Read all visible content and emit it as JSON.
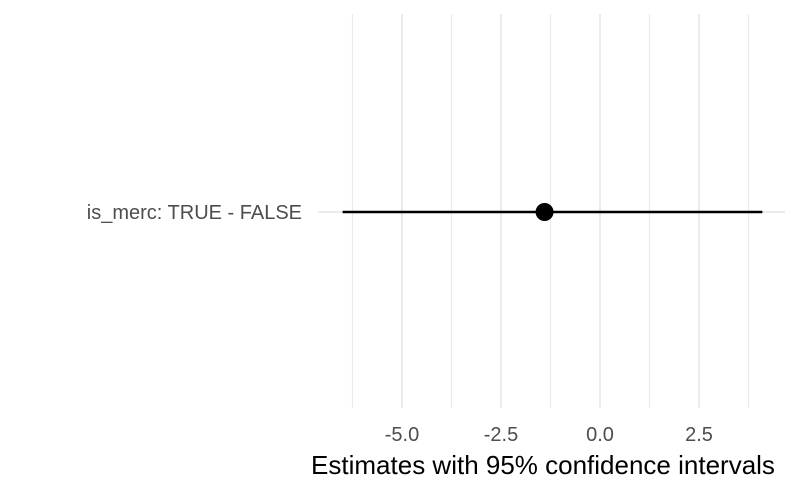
{
  "chart_data": {
    "type": "scatter",
    "title": "",
    "xlabel": "Estimates with 95% confidence intervals",
    "ylabel": "",
    "xlim": [
      -6.0,
      4.1
    ],
    "grid": true,
    "legend": "none",
    "x_ticks": [
      {
        "value": -5.0,
        "label": "-5.0"
      },
      {
        "value": -2.5,
        "label": "-2.5"
      },
      {
        "value": 0.0,
        "label": "0.0"
      },
      {
        "value": 2.5,
        "label": "2.5"
      }
    ],
    "series": [
      {
        "points": [
          {
            "category": "is_merc: TRUE - FALSE",
            "estimate": -1.4,
            "lower": -6.5,
            "upper": 4.1
          }
        ]
      }
    ],
    "colors": {
      "gridline": "#ebebeb",
      "point": "#000000",
      "tick_text": "#4d4d4d",
      "title_text": "#000000"
    }
  }
}
